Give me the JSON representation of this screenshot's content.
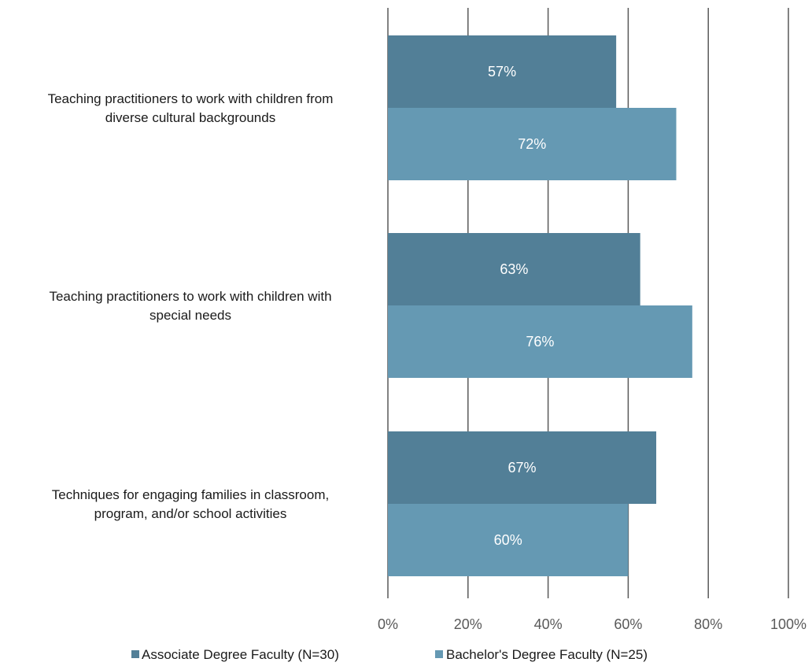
{
  "chart_data": {
    "type": "bar",
    "orientation": "horizontal",
    "categories": [
      [
        "Teaching practitioners to work with children from",
        "diverse cultural backgrounds"
      ],
      [
        "Teaching practitioners to work with children with",
        "special needs"
      ],
      [
        "Techniques for engaging families in classroom,",
        "program, and/or school activities"
      ]
    ],
    "series": [
      {
        "name": "Associate Degree Faculty (N=30)",
        "values": [
          57,
          63,
          67
        ],
        "labels": [
          "57%",
          "63%",
          "67%"
        ],
        "color": "#527f97"
      },
      {
        "name": "Bachelor's Degree Faculty (N=25)",
        "values": [
          72,
          76,
          60
        ],
        "labels": [
          "72%",
          "76%",
          "60%"
        ],
        "color": "#6599b3"
      }
    ],
    "xlim": [
      0,
      100
    ],
    "xticks": [
      "0%",
      "20%",
      "40%",
      "60%",
      "80%",
      "100%"
    ],
    "grid": true,
    "legend": "bottom"
  }
}
